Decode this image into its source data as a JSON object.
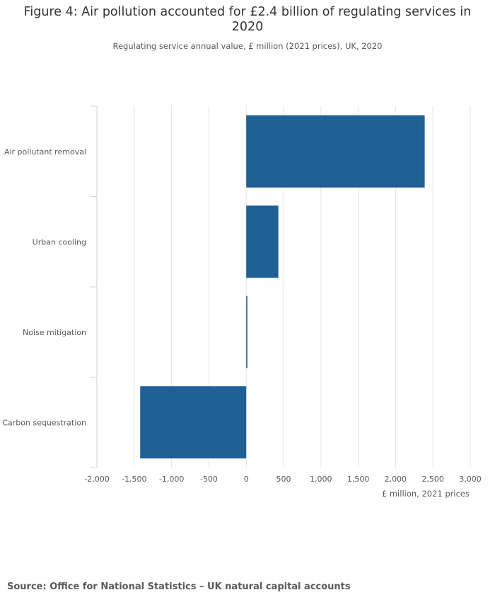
{
  "title": "Figure 4: Air pollution accounted for £2.4 billion of regulating services in 2020",
  "subtitle": "Regulating service annual value, £ million (2021 prices), UK, 2020",
  "source": "Source: Office for National Statistics – UK natural capital accounts",
  "chart_data": {
    "type": "bar",
    "orientation": "horizontal",
    "categories": [
      "Air pollutant removal",
      "Urban cooling",
      "Noise mitigation",
      "Carbon sequestration"
    ],
    "values": [
      2390,
      430,
      15,
      -1420
    ],
    "xlabel": "£ million, 2021 prices",
    "xlim": [
      -2000,
      3000
    ],
    "xticks": [
      -2000,
      -1500,
      -1000,
      -500,
      0,
      500,
      1000,
      1500,
      2000,
      2500,
      3000
    ],
    "xtick_labels": [
      "-2,000",
      "-1,500",
      "-1,000",
      "-500",
      "0",
      "500",
      "1,000",
      "1,500",
      "2,000",
      "2,500",
      "3,000"
    ],
    "grid": "vertical",
    "legend": "none",
    "bar_color": "#206095"
  }
}
